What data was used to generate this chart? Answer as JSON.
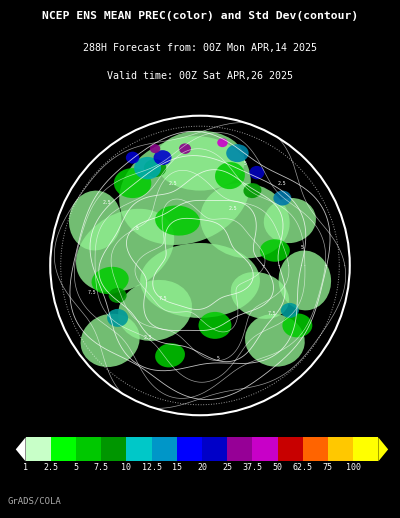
{
  "title_line1": "NCEP ENS MEAN PREC(color) and Std Dev(contour)",
  "title_line2": "288H Forecast from: 00Z Mon APR,14 2025",
  "title_line3": "Valid time: 00Z Sat APR,26 2025",
  "colorbar_labels": [
    "1",
    "2.5",
    "5",
    "7.5",
    "10",
    "12.5",
    "15",
    "20",
    "25",
    "37.5",
    "50",
    "62.5",
    "75",
    "100"
  ],
  "colorbar_colors": [
    "#c8ffc8",
    "#00ff00",
    "#00c800",
    "#009600",
    "#00c8c8",
    "#0096c8",
    "#0000ff",
    "#0000c8",
    "#960096",
    "#c800c8",
    "#c80000",
    "#ff6400",
    "#ffc800",
    "#ffff00"
  ],
  "background_color": "#000000",
  "text_color": "#ffffff",
  "watermark": "GrADS/COLA",
  "light_green": "#90ee90",
  "mid_green": "#00cc00",
  "dark_green": "#009900",
  "teal": "#00aaaa",
  "blue_teal": "#0088aa",
  "blue": "#0000cc",
  "purple": "#880088",
  "magenta": "#cc00cc"
}
